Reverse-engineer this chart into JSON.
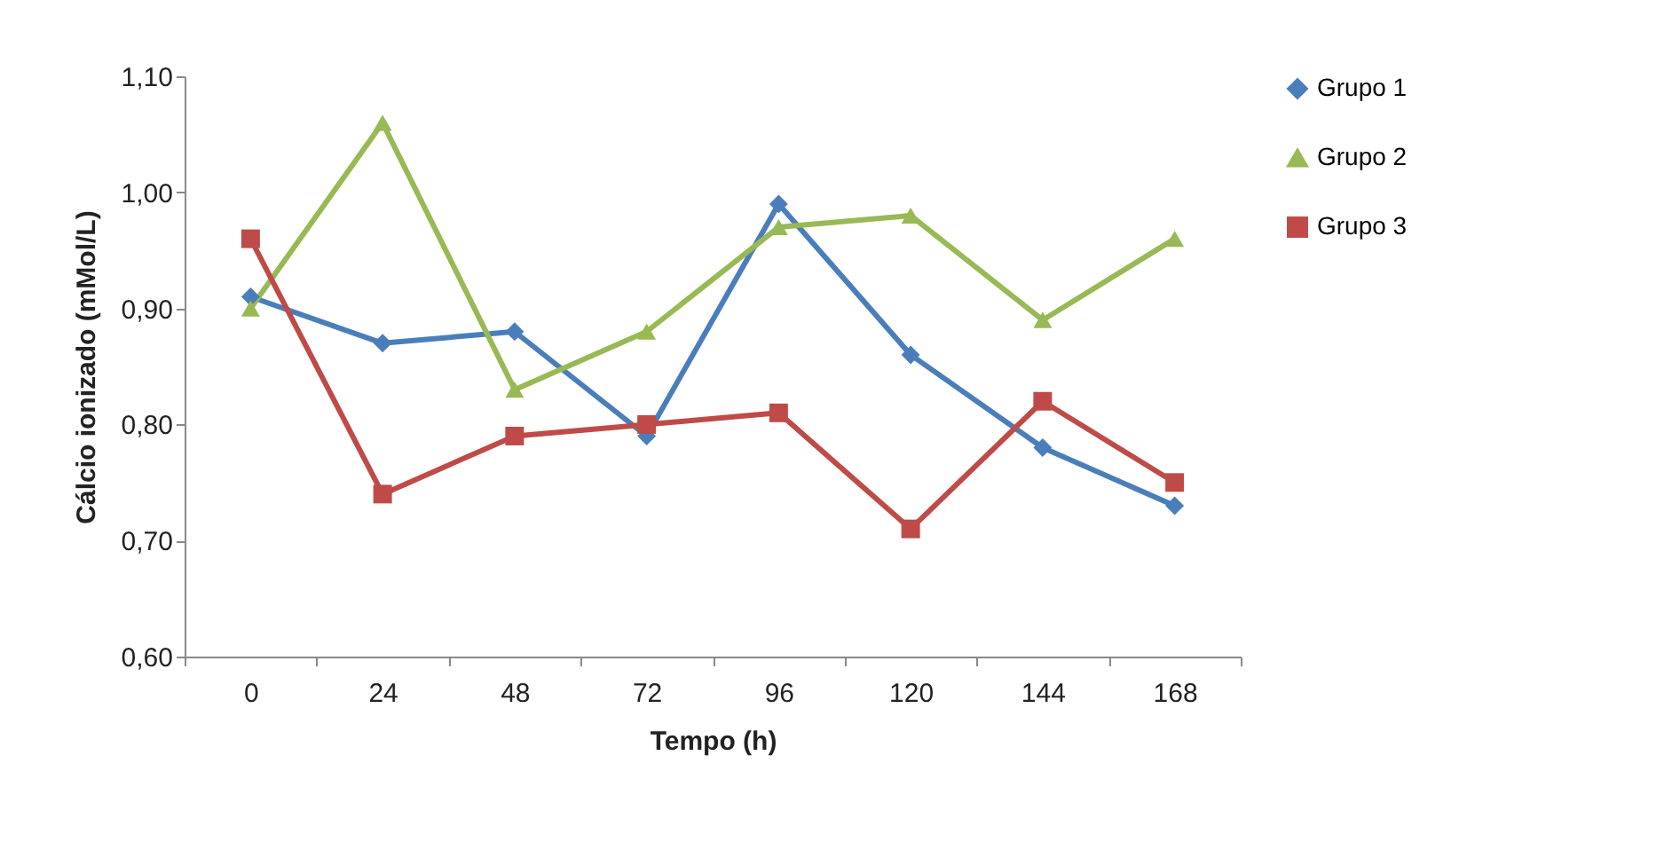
{
  "chart_data": {
    "type": "line",
    "xlabel": "Tempo (h)",
    "ylabel": "Cálcio ionizado (mMol/L)",
    "categories": [
      "0",
      "24",
      "48",
      "72",
      "96",
      "120",
      "144",
      "168"
    ],
    "series": [
      {
        "name": "Grupo 1",
        "color": "#4a7ebb",
        "marker": "diamond",
        "values": [
          0.91,
          0.87,
          0.88,
          0.79,
          0.99,
          0.86,
          0.78,
          0.73
        ]
      },
      {
        "name": "Grupo 2",
        "color": "#98b954",
        "marker": "triangle",
        "values": [
          0.9,
          1.06,
          0.83,
          0.88,
          0.97,
          0.98,
          0.89,
          0.96
        ]
      },
      {
        "name": "Grupo 3",
        "color": "#be4b48",
        "marker": "square",
        "values": [
          0.96,
          0.74,
          0.79,
          0.8,
          0.81,
          0.71,
          0.82,
          0.75
        ]
      }
    ],
    "ylim": [
      0.6,
      1.1
    ],
    "yticks": [
      {
        "value": 0.6,
        "label": "0,60"
      },
      {
        "value": 0.7,
        "label": "0,70"
      },
      {
        "value": 0.8,
        "label": "0,80"
      },
      {
        "value": 0.9,
        "label": "0,90"
      },
      {
        "value": 1.0,
        "label": "1,00"
      },
      {
        "value": 1.1,
        "label": "1,10"
      }
    ],
    "grid": false,
    "legend": "right"
  }
}
